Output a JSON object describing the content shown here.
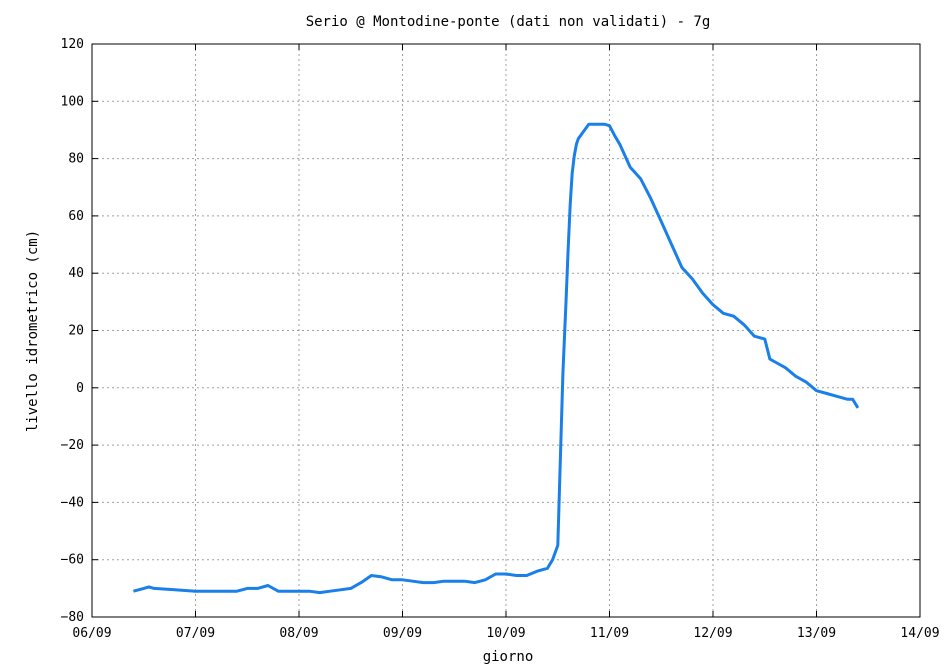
{
  "chart_data": {
    "type": "line",
    "title": "Serio @ Montodine-ponte (dati non validati) - 7g",
    "xlabel": "giorno",
    "ylabel": "livello idrometrico (cm)",
    "x_tick_labels": [
      "06/09",
      "07/09",
      "08/09",
      "09/09",
      "10/09",
      "11/09",
      "12/09",
      "13/09",
      "14/09"
    ],
    "xlim_days": [
      6,
      14
    ],
    "ylim": [
      -80,
      120
    ],
    "y_ticks": [
      -80,
      -60,
      -40,
      -20,
      0,
      20,
      40,
      60,
      80,
      100,
      120
    ],
    "grid": true,
    "legend": "none",
    "series_color": "#1a7fe8",
    "series": [
      {
        "x_day": [
          6.4,
          6.5,
          6.55,
          6.6,
          6.8,
          7.0,
          7.1,
          7.2,
          7.3,
          7.4,
          7.5,
          7.6,
          7.7,
          7.8,
          7.9,
          8.0,
          8.1,
          8.2,
          8.3,
          8.4,
          8.5,
          8.6,
          8.7,
          8.8,
          8.9,
          9.0,
          9.1,
          9.2,
          9.3,
          9.4,
          9.5,
          9.6,
          9.7,
          9.8,
          9.9,
          10.0,
          10.1,
          10.2,
          10.3,
          10.4,
          10.45,
          10.5,
          10.55,
          10.58,
          10.6,
          10.62,
          10.64,
          10.66,
          10.68,
          10.7,
          10.72,
          10.74,
          10.76,
          10.78,
          10.8,
          10.85,
          10.9,
          10.95,
          11.0,
          11.05,
          11.1,
          11.15,
          11.2,
          11.3,
          11.4,
          11.5,
          11.6,
          11.7,
          11.8,
          11.9,
          12.0,
          12.1,
          12.2,
          12.3,
          12.4,
          12.5,
          12.55,
          12.6,
          12.7,
          12.8,
          12.9,
          13.0,
          13.1,
          13.2,
          13.3,
          13.35,
          13.4
        ],
        "y": [
          -71,
          -70,
          -69.5,
          -70,
          -70.5,
          -71,
          -71,
          -71,
          -71,
          -71,
          -70,
          -70,
          -69,
          -71,
          -71,
          -71,
          -71,
          -71.5,
          -71,
          -70.5,
          -70,
          -68,
          -65.5,
          -66,
          -67,
          -67,
          -67.5,
          -68,
          -68,
          -67.5,
          -67.5,
          -67.5,
          -68,
          -67,
          -65,
          -65,
          -65.5,
          -65.5,
          -64,
          -63,
          -60,
          -55,
          5,
          30,
          48,
          64,
          75,
          81,
          85,
          87,
          88,
          89,
          90,
          91,
          92,
          92,
          92,
          92,
          91.5,
          88,
          85,
          81,
          77,
          73,
          66,
          58,
          50,
          42,
          38,
          33,
          29,
          26,
          25,
          22,
          18,
          17,
          10,
          9,
          7,
          4,
          2,
          -1,
          -2,
          -3,
          -4,
          -4,
          -7
        ]
      }
    ]
  }
}
